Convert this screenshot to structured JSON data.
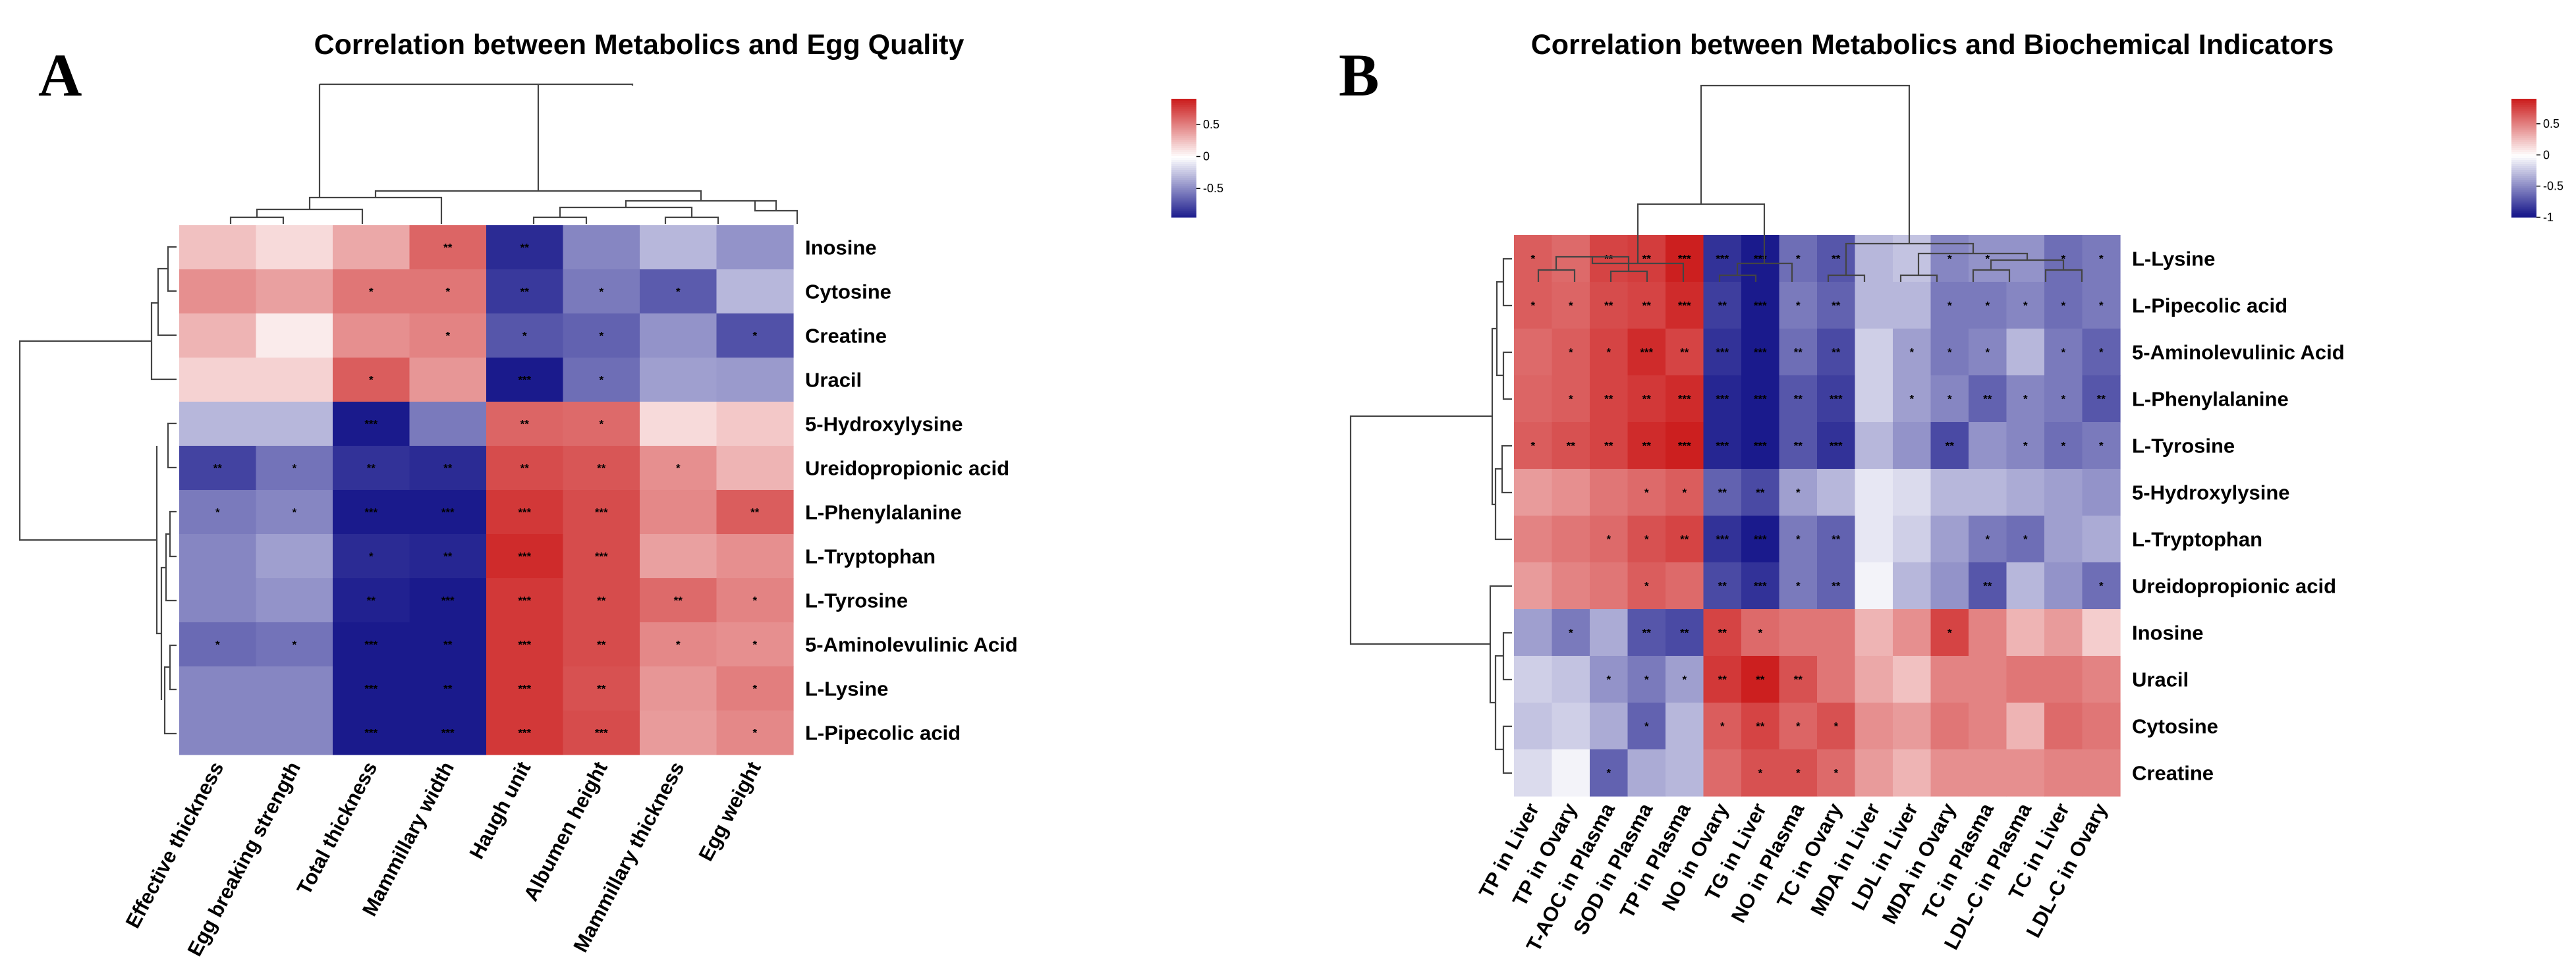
{
  "chart_data": [
    {
      "type": "heatmap",
      "panel_label": "A",
      "title": "Correlation between Metabolics and Egg Quality",
      "rows": [
        "Inosine",
        "Cytosine",
        "Creatine",
        "Uracil",
        "5-Hydroxylysine",
        "Ureidopropionic acid",
        "L-Phenylalanine",
        "L-Tryptophan",
        "L-Tyrosine",
        "5-Aminolevulinic Acid",
        "L-Lysine",
        "L-Pipecolic acid"
      ],
      "columns": [
        "Effective thickness",
        "Egg breaking strength",
        "Total thickness",
        "Mammillary width",
        "Haugh unit",
        "Albumen height",
        "Mammillary thickness",
        "Egg weight"
      ],
      "values": [
        [
          0.25,
          0.15,
          0.35,
          0.62,
          -0.88,
          -0.5,
          -0.3,
          -0.45
        ],
        [
          0.45,
          0.38,
          0.55,
          0.55,
          -0.82,
          -0.55,
          -0.68,
          -0.3
        ],
        [
          0.3,
          0.08,
          0.45,
          0.5,
          -0.7,
          -0.65,
          -0.45,
          -0.72
        ],
        [
          0.18,
          0.18,
          0.65,
          0.42,
          -0.95,
          -0.6,
          -0.4,
          -0.42
        ],
        [
          -0.3,
          -0.3,
          -0.95,
          -0.55,
          0.62,
          0.6,
          0.15,
          0.22
        ],
        [
          -0.78,
          -0.58,
          -0.85,
          -0.88,
          0.72,
          0.68,
          0.45,
          0.3
        ],
        [
          -0.55,
          -0.5,
          -0.95,
          -0.95,
          0.8,
          0.72,
          0.48,
          0.65
        ],
        [
          -0.5,
          -0.4,
          -0.88,
          -0.9,
          0.85,
          0.72,
          0.38,
          0.45
        ],
        [
          -0.5,
          -0.45,
          -0.92,
          -0.98,
          0.8,
          0.72,
          0.6,
          0.5
        ],
        [
          -0.62,
          -0.58,
          -0.95,
          -0.95,
          0.8,
          0.72,
          0.48,
          0.45
        ],
        [
          -0.5,
          -0.5,
          -0.95,
          -0.95,
          0.8,
          0.7,
          0.42,
          0.52
        ],
        [
          -0.5,
          -0.5,
          -0.95,
          -0.95,
          0.8,
          0.72,
          0.4,
          0.48
        ]
      ],
      "significance": [
        [
          "",
          "",
          "",
          "**",
          "**",
          "",
          "",
          ""
        ],
        [
          "",
          "",
          "*",
          "*",
          "**",
          "*",
          "*",
          ""
        ],
        [
          "",
          "",
          "",
          "*",
          "*",
          "*",
          "",
          "*"
        ],
        [
          "",
          "",
          "*",
          "",
          "***",
          "*",
          "",
          ""
        ],
        [
          "",
          "",
          "***",
          "",
          "**",
          "*",
          "",
          ""
        ],
        [
          "**",
          "*",
          "**",
          "**",
          "**",
          "**",
          "*",
          ""
        ],
        [
          "*",
          "*",
          "***",
          "***",
          "***",
          "***",
          "",
          "**"
        ],
        [
          "",
          "",
          "*",
          "**",
          "***",
          "***",
          "",
          ""
        ],
        [
          "",
          "",
          "**",
          "***",
          "***",
          "**",
          "**",
          "*"
        ],
        [
          "*",
          "*",
          "***",
          "**",
          "***",
          "**",
          "*",
          "*"
        ],
        [
          "",
          "",
          "***",
          "**",
          "***",
          "**",
          "",
          "*"
        ],
        [
          "",
          "",
          "***",
          "***",
          "***",
          "***",
          "",
          "*"
        ]
      ],
      "legend": {
        "ticks": [
          0.5,
          0,
          -0.5
        ],
        "tick_labels": [
          "0.5",
          "0",
          "-0.5"
        ],
        "range": [
          -0.95,
          0.9
        ]
      },
      "colors": {
        "low": "#1a1a8c",
        "mid": "#ffffff",
        "high": "#cc1f1f"
      }
    },
    {
      "type": "heatmap",
      "panel_label": "B",
      "title": "Correlation between Metabolics and Biochemical Indicators",
      "rows": [
        "L-Lysine",
        "L-Pipecolic acid",
        "5-Aminolevulinic Acid",
        "L-Phenylalanine",
        "L-Tyrosine",
        "5-Hydroxylysine",
        "L-Tryptophan",
        "Ureidopropionic acid",
        "Inosine",
        "Uracil",
        "Cytosine",
        "Creatine"
      ],
      "columns": [
        "TP in Liver",
        "TP in Ovary",
        "T-AOC in Plasma",
        "SOD in Plasma",
        "TP in Plasma",
        "NO in Ovary",
        "TG in Liver",
        "NO in Plasma",
        "TC in Ovary",
        "MDA in Liver",
        "LDL in Liver",
        "MDA in Ovary",
        "TC in Plasma",
        "LDL-C in Plasma",
        "TC in Liver",
        "LDL-C in Ovary"
      ],
      "values": [
        [
          0.65,
          0.6,
          0.75,
          0.78,
          0.9,
          -0.85,
          -0.95,
          -0.6,
          -0.7,
          -0.3,
          -0.25,
          -0.5,
          -0.45,
          -0.45,
          -0.6,
          -0.55
        ],
        [
          0.65,
          0.62,
          0.72,
          0.75,
          0.85,
          -0.8,
          -0.95,
          -0.55,
          -0.65,
          -0.3,
          -0.3,
          -0.55,
          -0.55,
          -0.5,
          -0.6,
          -0.55
        ],
        [
          0.6,
          0.65,
          0.75,
          0.85,
          0.75,
          -0.85,
          -0.95,
          -0.6,
          -0.75,
          -0.2,
          -0.4,
          -0.55,
          -0.5,
          -0.3,
          -0.55,
          -0.65
        ],
        [
          0.62,
          0.65,
          0.75,
          0.8,
          0.85,
          -0.9,
          -0.95,
          -0.7,
          -0.8,
          -0.2,
          -0.4,
          -0.5,
          -0.65,
          -0.5,
          -0.55,
          -0.7
        ],
        [
          0.65,
          0.7,
          0.75,
          0.85,
          0.9,
          -0.9,
          -0.95,
          -0.7,
          -0.85,
          -0.3,
          -0.45,
          -0.75,
          -0.45,
          -0.5,
          -0.6,
          -0.55
        ],
        [
          0.4,
          0.45,
          0.55,
          0.6,
          0.65,
          -0.65,
          -0.75,
          -0.4,
          -0.3,
          -0.1,
          -0.15,
          -0.3,
          -0.3,
          -0.35,
          -0.4,
          -0.45
        ],
        [
          0.5,
          0.55,
          0.6,
          0.7,
          0.75,
          -0.85,
          -0.95,
          -0.55,
          -0.65,
          -0.1,
          -0.2,
          -0.4,
          -0.55,
          -0.6,
          -0.4,
          -0.35
        ],
        [
          0.4,
          0.5,
          0.55,
          0.65,
          0.6,
          -0.75,
          -0.85,
          -0.55,
          -0.65,
          -0.05,
          -0.3,
          -0.45,
          -0.7,
          -0.3,
          -0.45,
          -0.6
        ],
        [
          -0.4,
          -0.55,
          -0.35,
          -0.7,
          -0.75,
          0.75,
          0.6,
          0.55,
          0.55,
          0.3,
          0.45,
          0.75,
          0.5,
          0.3,
          0.4,
          0.2
        ],
        [
          -0.2,
          -0.25,
          -0.45,
          -0.55,
          -0.4,
          0.8,
          0.92,
          0.7,
          0.55,
          0.35,
          0.25,
          0.5,
          0.5,
          0.55,
          0.55,
          0.5
        ],
        [
          -0.25,
          -0.2,
          -0.35,
          -0.65,
          -0.3,
          0.65,
          0.75,
          0.62,
          0.7,
          0.45,
          0.4,
          0.55,
          0.5,
          0.3,
          0.6,
          0.55
        ],
        [
          -0.15,
          -0.05,
          -0.65,
          -0.35,
          -0.3,
          0.6,
          0.7,
          0.7,
          0.6,
          0.4,
          0.3,
          0.45,
          0.45,
          0.45,
          0.5,
          0.5
        ]
      ],
      "significance": [
        [
          "*",
          "",
          "**",
          "**",
          "***",
          "***",
          "***",
          "*",
          "**",
          "",
          "",
          "*",
          "*",
          "",
          "*",
          "*"
        ],
        [
          "*",
          "*",
          "**",
          "**",
          "***",
          "**",
          "***",
          "*",
          "**",
          "",
          "",
          "*",
          "*",
          "*",
          "*",
          "*"
        ],
        [
          "",
          "*",
          "*",
          "***",
          "**",
          "***",
          "***",
          "**",
          "**",
          "",
          "*",
          "*",
          "*",
          "",
          "*",
          "*"
        ],
        [
          "",
          "*",
          "**",
          "**",
          "***",
          "***",
          "***",
          "**",
          "***",
          "",
          "*",
          "*",
          "**",
          "*",
          "*",
          "**"
        ],
        [
          "*",
          "**",
          "**",
          "**",
          "***",
          "***",
          "***",
          "**",
          "***",
          "",
          "",
          "**",
          "",
          "*",
          "*",
          "*"
        ],
        [
          "",
          "",
          "",
          "*",
          "*",
          "**",
          "**",
          "*",
          "",
          "",
          "",
          "",
          "",
          "",
          "",
          ""
        ],
        [
          "",
          "",
          "*",
          "*",
          "**",
          "***",
          "***",
          "*",
          "**",
          "",
          "",
          "",
          "*",
          "*",
          "",
          ""
        ],
        [
          "",
          "",
          "",
          "*",
          "",
          "**",
          "***",
          "*",
          "**",
          "",
          "",
          "",
          "**",
          "",
          "",
          "*"
        ],
        [
          "",
          "*",
          "",
          "**",
          "**",
          "**",
          "*",
          "",
          "",
          "",
          "",
          "*",
          "",
          "",
          "",
          ""
        ],
        [
          "",
          "",
          "*",
          "*",
          "*",
          "**",
          "**",
          "**",
          "",
          "",
          "",
          "",
          "",
          "",
          "",
          ""
        ],
        [
          "",
          "",
          "",
          "*",
          "",
          "*",
          "**",
          "*",
          "*",
          "",
          "",
          "",
          "",
          "",
          "",
          ""
        ],
        [
          "",
          "",
          "*",
          "",
          "",
          "",
          "*",
          "*",
          "*",
          "",
          "",
          "",
          "",
          "",
          "",
          ""
        ]
      ],
      "legend": {
        "ticks": [
          0.5,
          0,
          -0.5,
          -1
        ],
        "tick_labels": [
          "0.5",
          "0",
          "-0.5",
          "-1"
        ],
        "range": [
          -1,
          0.9
        ]
      },
      "colors": {
        "low": "#1a1a8c",
        "mid": "#ffffff",
        "high": "#cc1f1f"
      }
    }
  ]
}
